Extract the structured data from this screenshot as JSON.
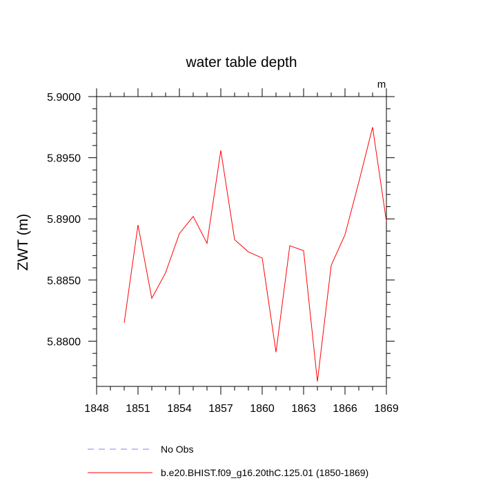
{
  "chart_data": {
    "type": "line",
    "title": "water table depth",
    "units_label": "m",
    "ylabel": "ZWT  (m)",
    "xlabel": "",
    "xlim": [
      1848,
      1869
    ],
    "ylim": [
      5.8763,
      5.9
    ],
    "x_ticks": [
      "1848",
      "1851",
      "1854",
      "1857",
      "1860",
      "1863",
      "1866",
      "1869"
    ],
    "y_ticks": [
      "5.9000",
      "5.8950",
      "5.8900",
      "5.8850",
      "5.8800"
    ],
    "y_tick_values": [
      5.9,
      5.895,
      5.89,
      5.885,
      5.88
    ],
    "series": [
      {
        "name": "b.e20.BHIST.f09_g16.20thC.125.01 (1850-1869)",
        "color": "#ff0000",
        "dash": "solid",
        "x": [
          1850,
          1851,
          1852,
          1853,
          1854,
          1855,
          1856,
          1857,
          1858,
          1859,
          1860,
          1861,
          1862,
          1863,
          1864,
          1865,
          1866,
          1867,
          1868,
          1869
        ],
        "y": [
          5.8815,
          5.8895,
          5.8835,
          5.8856,
          5.8888,
          5.8902,
          5.888,
          5.8956,
          5.8883,
          5.8873,
          5.8868,
          5.8791,
          5.8878,
          5.8874,
          5.8767,
          5.8862,
          5.8887,
          5.893,
          5.8975,
          5.8898
        ]
      },
      {
        "name": "No Obs",
        "color": "#8080ff",
        "dash": "dashed",
        "x": [],
        "y": []
      }
    ],
    "legend": [
      {
        "label": "No Obs",
        "color": "#8080ff",
        "dash": "dashed"
      },
      {
        "label": "b.e20.BHIST.f09_g16.20thC.125.01 (1850-1869)",
        "color": "#ff0000",
        "dash": "solid"
      }
    ],
    "legend_position": "bottom",
    "grid": false
  }
}
